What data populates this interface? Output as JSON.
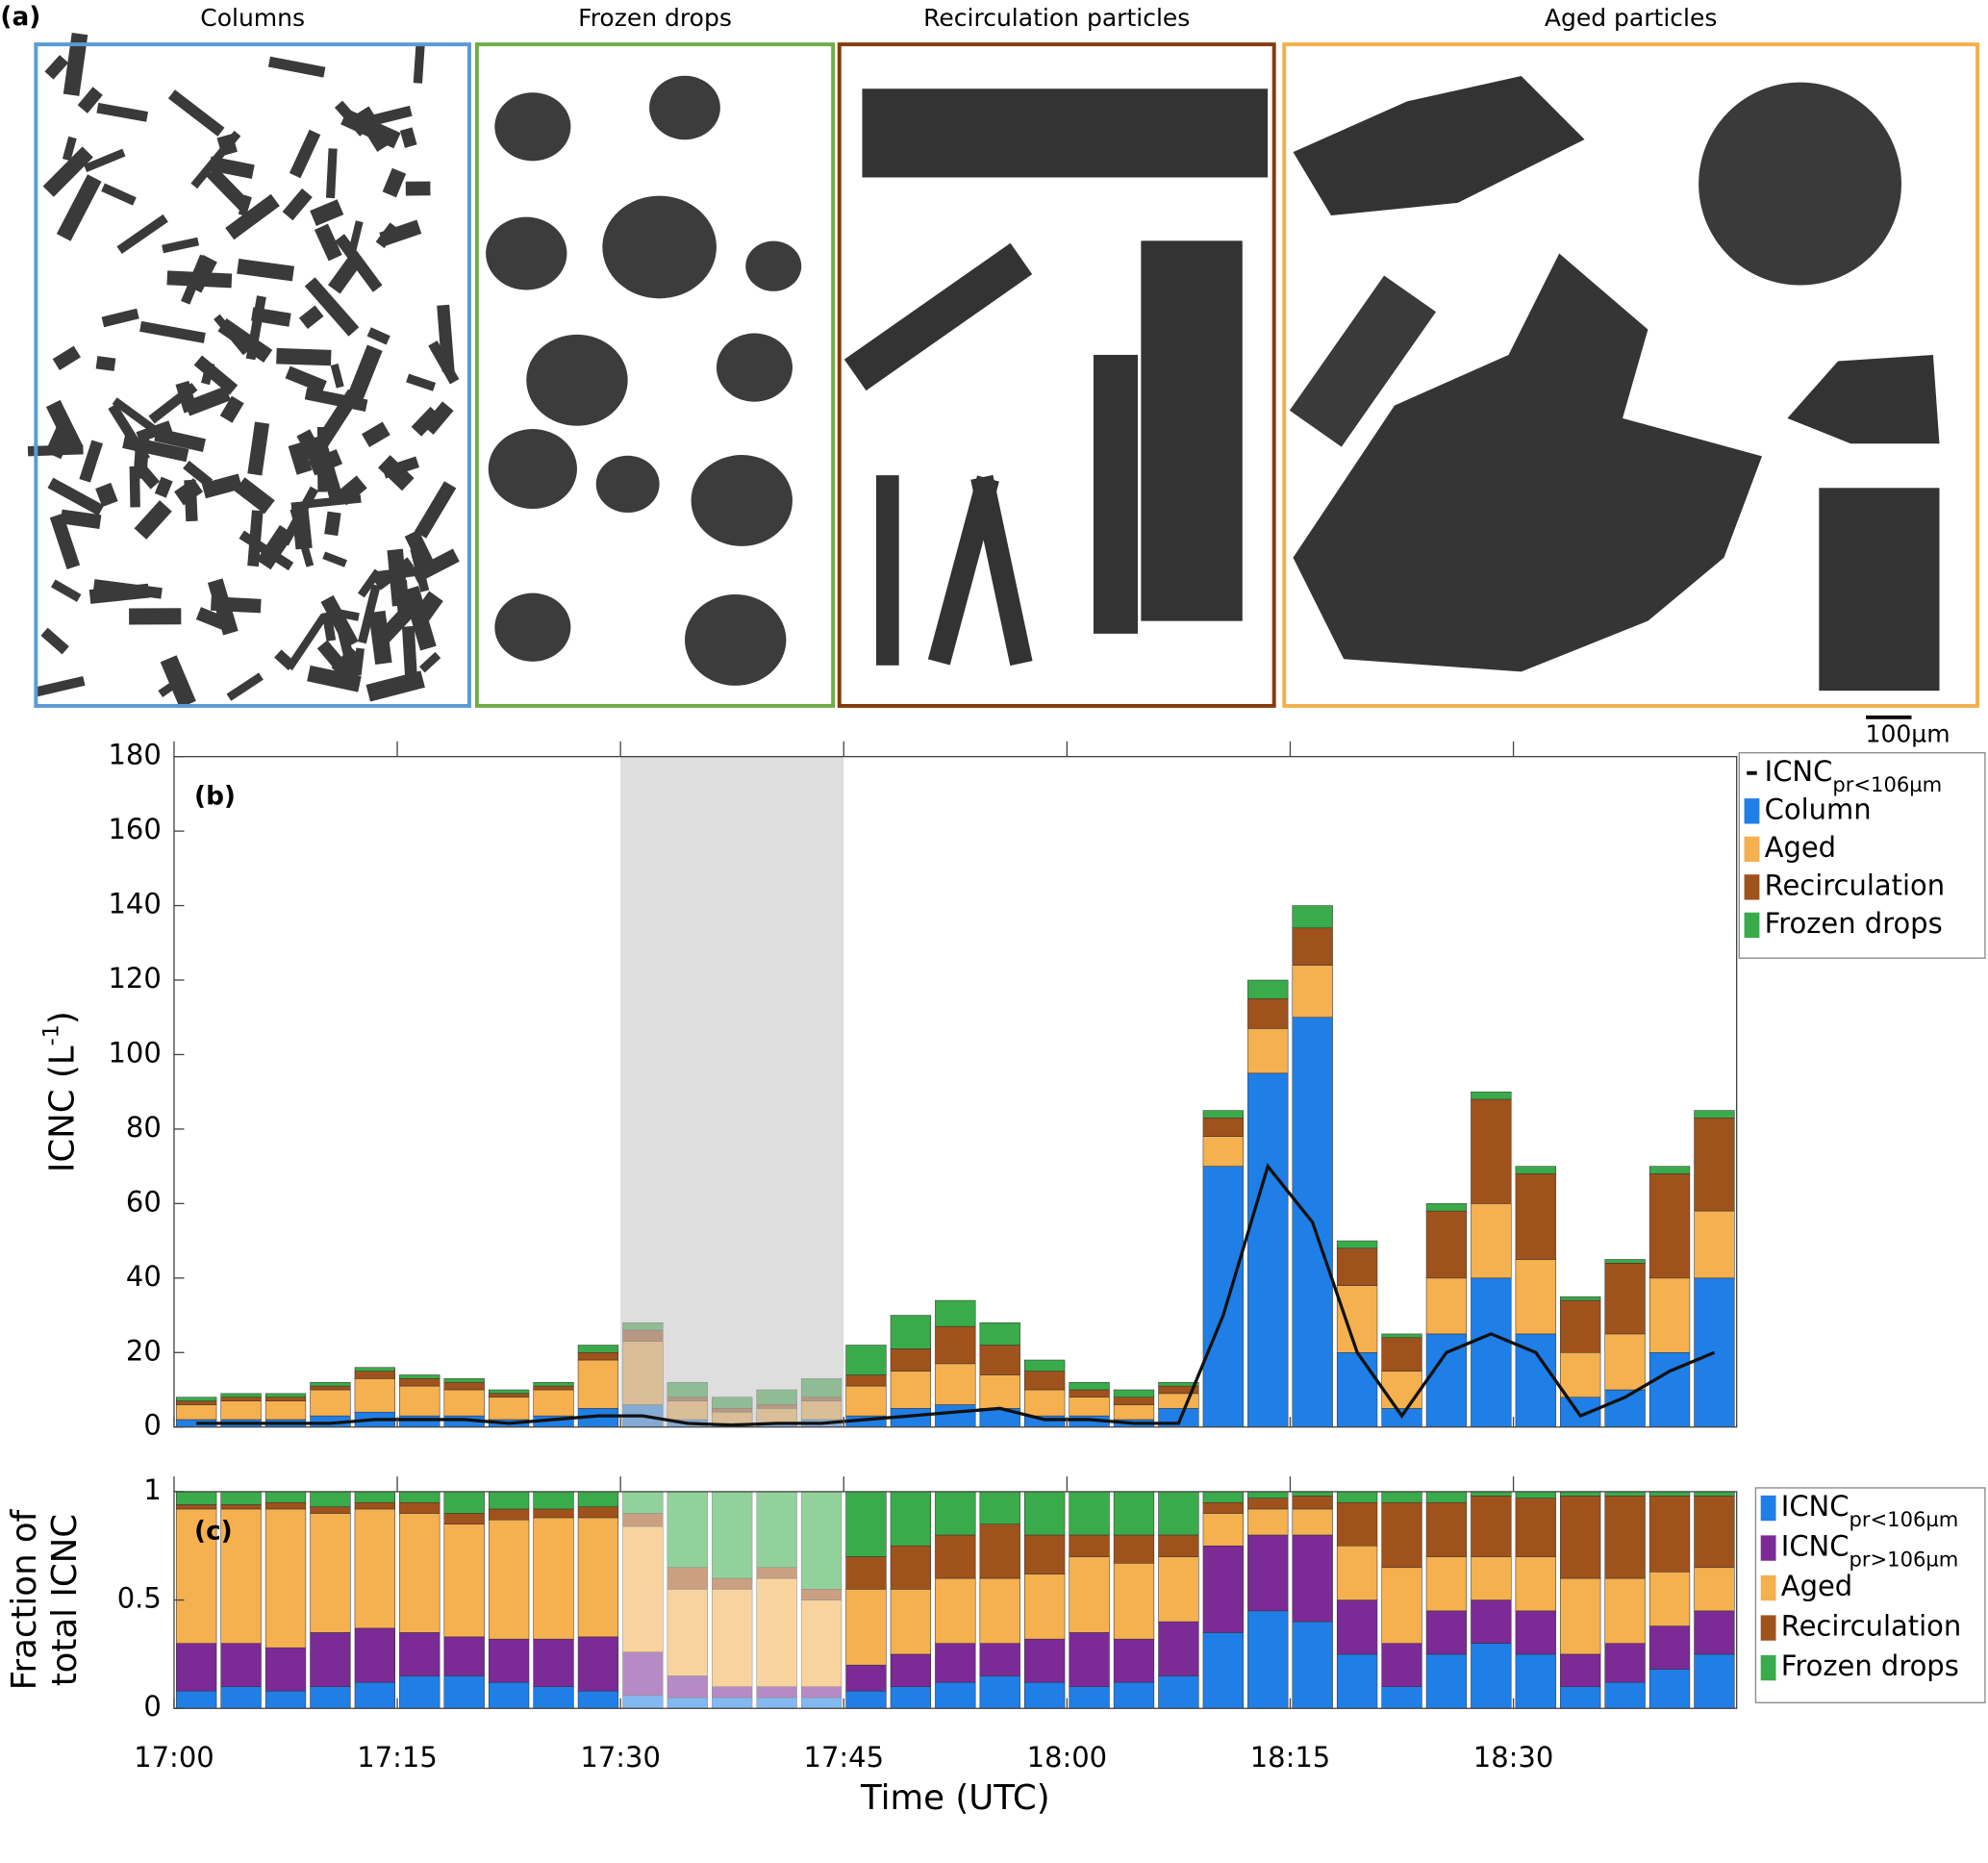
{
  "panel_a": {
    "label": "(a)",
    "scale_bar": "100µm",
    "boxes": [
      {
        "title": "Columns",
        "color": "#5b9bd5"
      },
      {
        "title": "Frozen drops",
        "color": "#70ad47"
      },
      {
        "title": "Recirculation particles",
        "color": "#843c0c"
      },
      {
        "title": "Aged particles",
        "color": "#f4b04f"
      }
    ]
  },
  "chart_data": [
    {
      "type": "bar",
      "stacked": true,
      "panel_label": "(b)",
      "y_label": {
        "text": "ICNC (L",
        "sup": "-1",
        "tail": ")"
      },
      "shaded_span": [
        30,
        45
      ],
      "x": [
        1.5,
        4.5,
        7.5,
        10.5,
        13.5,
        16.5,
        19.5,
        22.5,
        25.5,
        28.5,
        31.5,
        34.5,
        37.5,
        40.5,
        43.5,
        46.5,
        49.5,
        52.5,
        55.5,
        58.5,
        61.5,
        64.5,
        67.5,
        70.5,
        73.5,
        76.5,
        79.5,
        82.5,
        85.5,
        88.5,
        91.5,
        94.5,
        97.5,
        100.5,
        103.5
      ],
      "xlim": [
        0,
        105
      ],
      "xticks": [
        0,
        15,
        30,
        45,
        60,
        75,
        90
      ],
      "ylim": [
        0,
        180
      ],
      "yticks": [
        0,
        20,
        40,
        60,
        80,
        100,
        120,
        140,
        160,
        180
      ],
      "legend": "upper right",
      "series": [
        {
          "name": "ICNC",
          "subscript": "pr<106µm",
          "type": "line",
          "color": "#111111",
          "values": [
            1,
            1,
            1,
            1,
            2,
            2,
            2,
            1,
            2,
            3,
            3,
            1,
            0.5,
            1,
            1,
            2,
            3,
            4,
            5,
            2,
            2,
            1,
            1,
            30,
            70,
            55,
            20,
            3,
            20,
            25,
            20,
            3,
            8,
            15,
            20
          ]
        },
        {
          "name": "Column",
          "color": "#1f7fe6",
          "values": [
            2,
            2,
            2,
            3,
            4,
            3,
            3,
            2,
            3,
            5,
            6,
            2,
            1,
            1,
            2,
            3,
            5,
            6,
            5,
            3,
            3,
            2,
            5,
            70,
            95,
            110,
            20,
            5,
            25,
            40,
            25,
            8,
            10,
            20,
            40
          ]
        },
        {
          "name": "Aged",
          "color": "#f5b04f",
          "values": [
            4,
            5,
            5,
            7,
            9,
            8,
            7,
            6,
            7,
            13,
            17,
            5,
            3,
            4,
            5,
            8,
            10,
            11,
            9,
            7,
            5,
            4,
            4,
            8,
            12,
            14,
            18,
            10,
            15,
            20,
            20,
            12,
            15,
            20,
            18
          ]
        },
        {
          "name": "Recirculation",
          "color": "#a0521c",
          "values": [
            1,
            1,
            1,
            1,
            2,
            2,
            2,
            1,
            1,
            2,
            3,
            1,
            1,
            1,
            1,
            3,
            6,
            10,
            8,
            5,
            2,
            2,
            2,
            5,
            8,
            10,
            10,
            9,
            18,
            28,
            23,
            14,
            19,
            28,
            25
          ]
        },
        {
          "name": "Frozen drops",
          "color": "#3aab4a",
          "values": [
            1,
            1,
            1,
            1,
            1,
            1,
            1,
            1,
            1,
            2,
            2,
            4,
            3,
            4,
            5,
            8,
            9,
            7,
            6,
            3,
            2,
            2,
            1,
            2,
            5,
            6,
            2,
            1,
            2,
            2,
            2,
            1,
            1,
            2,
            2
          ]
        }
      ]
    },
    {
      "type": "bar",
      "stacked": true,
      "panel_label": "(c)",
      "y_label": [
        "Fraction of",
        "total ICNC"
      ],
      "x_label": "Time (UTC)",
      "shaded_span": [
        30,
        45
      ],
      "x": [
        1.5,
        4.5,
        7.5,
        10.5,
        13.5,
        16.5,
        19.5,
        22.5,
        25.5,
        28.5,
        31.5,
        34.5,
        37.5,
        40.5,
        43.5,
        46.5,
        49.5,
        52.5,
        55.5,
        58.5,
        61.5,
        64.5,
        67.5,
        70.5,
        73.5,
        76.5,
        79.5,
        82.5,
        85.5,
        88.5,
        91.5,
        94.5,
        97.5,
        100.5,
        103.5
      ],
      "xlim": [
        0,
        105
      ],
      "xticks": [
        {
          "value": 0,
          "label": "17:00"
        },
        {
          "value": 15,
          "label": "17:15"
        },
        {
          "value": 30,
          "label": "17:30"
        },
        {
          "value": 45,
          "label": "17:45"
        },
        {
          "value": 60,
          "label": "18:00"
        },
        {
          "value": 75,
          "label": "18:15"
        },
        {
          "value": 90,
          "label": "18:30"
        }
      ],
      "ylim": [
        0,
        1
      ],
      "yticks": [
        0,
        0.5,
        1
      ],
      "legend": "upper right",
      "series": [
        {
          "name": "ICNC",
          "subscript": "pr<106µm",
          "color": "#1f7fe6",
          "values": [
            0.08,
            0.1,
            0.08,
            0.1,
            0.12,
            0.15,
            0.15,
            0.12,
            0.1,
            0.08,
            0.06,
            0.05,
            0.05,
            0.05,
            0.05,
            0.08,
            0.1,
            0.12,
            0.15,
            0.12,
            0.1,
            0.12,
            0.15,
            0.35,
            0.45,
            0.4,
            0.25,
            0.1,
            0.25,
            0.3,
            0.25,
            0.1,
            0.12,
            0.18,
            0.25
          ]
        },
        {
          "name": "ICNC",
          "subscript": "pr>106µm",
          "color": "#7b2a96",
          "values": [
            0.22,
            0.2,
            0.2,
            0.25,
            0.25,
            0.2,
            0.18,
            0.2,
            0.22,
            0.25,
            0.2,
            0.1,
            0.05,
            0.05,
            0.05,
            0.12,
            0.15,
            0.18,
            0.15,
            0.2,
            0.25,
            0.2,
            0.25,
            0.4,
            0.35,
            0.4,
            0.25,
            0.2,
            0.2,
            0.2,
            0.2,
            0.15,
            0.18,
            0.2,
            0.2
          ]
        },
        {
          "name": "Aged",
          "color": "#f5b04f",
          "values": [
            0.62,
            0.62,
            0.64,
            0.55,
            0.55,
            0.55,
            0.52,
            0.55,
            0.56,
            0.55,
            0.58,
            0.4,
            0.45,
            0.5,
            0.4,
            0.35,
            0.3,
            0.3,
            0.3,
            0.3,
            0.35,
            0.35,
            0.3,
            0.15,
            0.12,
            0.12,
            0.25,
            0.35,
            0.25,
            0.2,
            0.25,
            0.35,
            0.3,
            0.25,
            0.2
          ]
        },
        {
          "name": "Recirculation",
          "color": "#a0521c",
          "values": [
            0.02,
            0.02,
            0.03,
            0.03,
            0.03,
            0.05,
            0.05,
            0.05,
            0.04,
            0.05,
            0.06,
            0.1,
            0.05,
            0.05,
            0.05,
            0.15,
            0.2,
            0.2,
            0.25,
            0.18,
            0.1,
            0.13,
            0.1,
            0.05,
            0.05,
            0.06,
            0.2,
            0.3,
            0.25,
            0.28,
            0.27,
            0.38,
            0.38,
            0.35,
            0.33
          ]
        },
        {
          "name": "Frozen drops",
          "color": "#3aab4a",
          "values": [
            0.06,
            0.06,
            0.05,
            0.07,
            0.05,
            0.05,
            0.1,
            0.08,
            0.08,
            0.07,
            0.1,
            0.35,
            0.4,
            0.35,
            0.45,
            0.3,
            0.25,
            0.2,
            0.15,
            0.2,
            0.2,
            0.2,
            0.2,
            0.05,
            0.03,
            0.02,
            0.05,
            0.05,
            0.05,
            0.02,
            0.03,
            0.02,
            0.02,
            0.02,
            0.02
          ]
        }
      ]
    }
  ]
}
